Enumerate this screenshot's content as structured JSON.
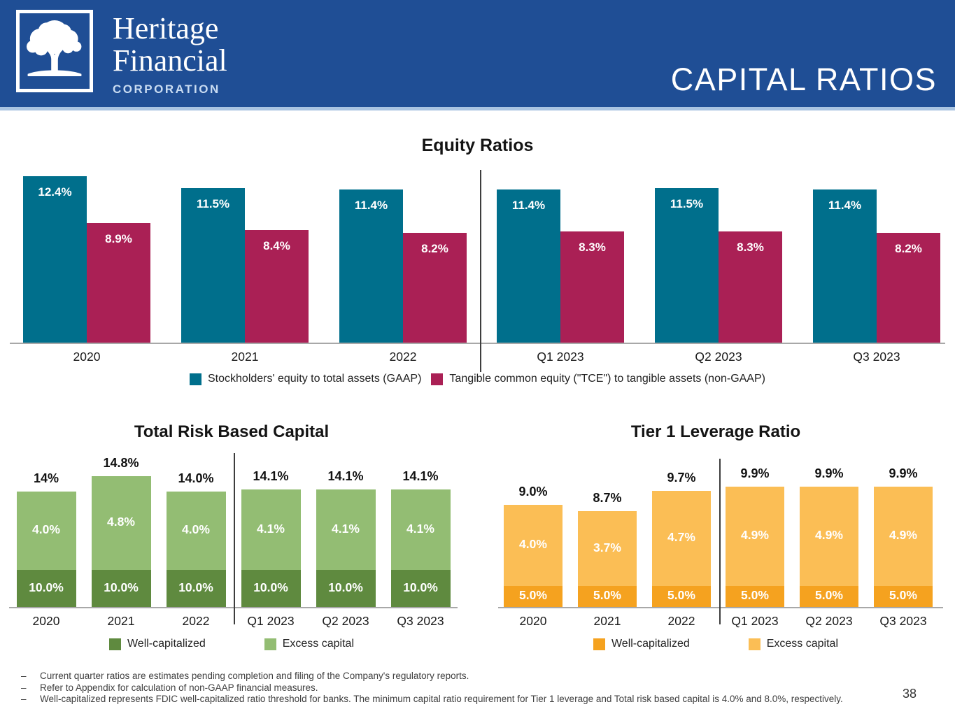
{
  "header": {
    "brand": {
      "line1": "Heritage",
      "line2": "Financial",
      "line3": "CORPORATION"
    },
    "title": "CAPITAL RATIOS",
    "colors": {
      "background": "#1F4E95",
      "border": "#A9C4E2"
    }
  },
  "chart_data": [
    {
      "id": "equity-ratios",
      "type": "bar",
      "title": "Equity Ratios",
      "categories": [
        "2020",
        "2021",
        "2022",
        "Q1 2023",
        "Q2 2023",
        "Q3 2023"
      ],
      "series": [
        {
          "name": "Stockholders' equity to total assets (GAAP)",
          "color": "#006F8C",
          "values": [
            12.4,
            11.5,
            11.4,
            11.4,
            11.5,
            11.4
          ],
          "labels": [
            "12.4%",
            "11.5%",
            "11.4%",
            "11.4%",
            "11.5%",
            "11.4%"
          ]
        },
        {
          "name": "Tangible common equity (\"TCE\") to tangible assets (non-GAAP)",
          "color": "#AA2055",
          "values": [
            8.9,
            8.4,
            8.2,
            8.3,
            8.3,
            8.2
          ],
          "labels": [
            "8.9%",
            "8.4%",
            "8.2%",
            "8.3%",
            "8.3%",
            "8.2%"
          ]
        }
      ],
      "divider_after_category": "2022",
      "legend_position": "bottom",
      "ylim": [
        0,
        13
      ],
      "grid": false
    },
    {
      "id": "total-risk-based-capital",
      "type": "stacked-bar",
      "title": "Total Risk Based Capital",
      "categories": [
        "2020",
        "2021",
        "2022",
        "Q1 2023",
        "Q2 2023",
        "Q3 2023"
      ],
      "series": [
        {
          "name": "Well-capitalized",
          "color": "#5F8A3F",
          "values": [
            10.0,
            10.0,
            10.0,
            10.0,
            10.0,
            10.0
          ],
          "labels": [
            "10.0%",
            "10.0%",
            "10.0%",
            "10.0%",
            "10.0%",
            "10.0%"
          ]
        },
        {
          "name": "Excess capital",
          "color": "#93BD73",
          "values": [
            4.0,
            4.8,
            4.0,
            4.1,
            4.1,
            4.1
          ],
          "labels": [
            "4.0%",
            "4.8%",
            "4.0%",
            "4.1%",
            "4.1%",
            "4.1%"
          ]
        }
      ],
      "totals": [
        "14%",
        "14.8%",
        "14.0%",
        "14.1%",
        "14.1%",
        "14.1%"
      ],
      "divider_after_category": "2022",
      "legend_position": "bottom",
      "grid": false
    },
    {
      "id": "tier-1-leverage-ratio",
      "type": "stacked-bar",
      "title": "Tier 1 Leverage Ratio",
      "categories": [
        "2020",
        "2021",
        "2022",
        "Q1 2023",
        "Q2 2023",
        "Q3 2023"
      ],
      "series": [
        {
          "name": "Well-capitalized",
          "color": "#F5A21F",
          "values": [
            5.0,
            5.0,
            5.0,
            5.0,
            5.0,
            5.0
          ],
          "labels": [
            "5.0%",
            "5.0%",
            "5.0%",
            "5.0%",
            "5.0%",
            "5.0%"
          ]
        },
        {
          "name": "Excess capital",
          "color": "#FBBE55",
          "values": [
            4.0,
            3.7,
            4.7,
            4.9,
            4.9,
            4.9
          ],
          "labels": [
            "4.0%",
            "3.7%",
            "4.7%",
            "4.9%",
            "4.9%",
            "4.9%"
          ]
        }
      ],
      "totals": [
        "9.0%",
        "8.7%",
        "9.7%",
        "9.9%",
        "9.9%",
        "9.9%"
      ],
      "divider_after_category": "2022",
      "legend_position": "bottom",
      "grid": false
    }
  ],
  "footnotes": {
    "bullet": "–",
    "items": [
      "Current quarter ratios are estimates pending completion and filing of the Company's regulatory reports.",
      "Refer to Appendix for calculation of non-GAAP financial measures.",
      "Well-capitalized represents FDIC well-capitalized ratio threshold for banks. The minimum capital ratio requirement for Tier 1 leverage and Total risk based capital is 4.0% and 8.0%, respectively."
    ]
  },
  "page_number": "38"
}
